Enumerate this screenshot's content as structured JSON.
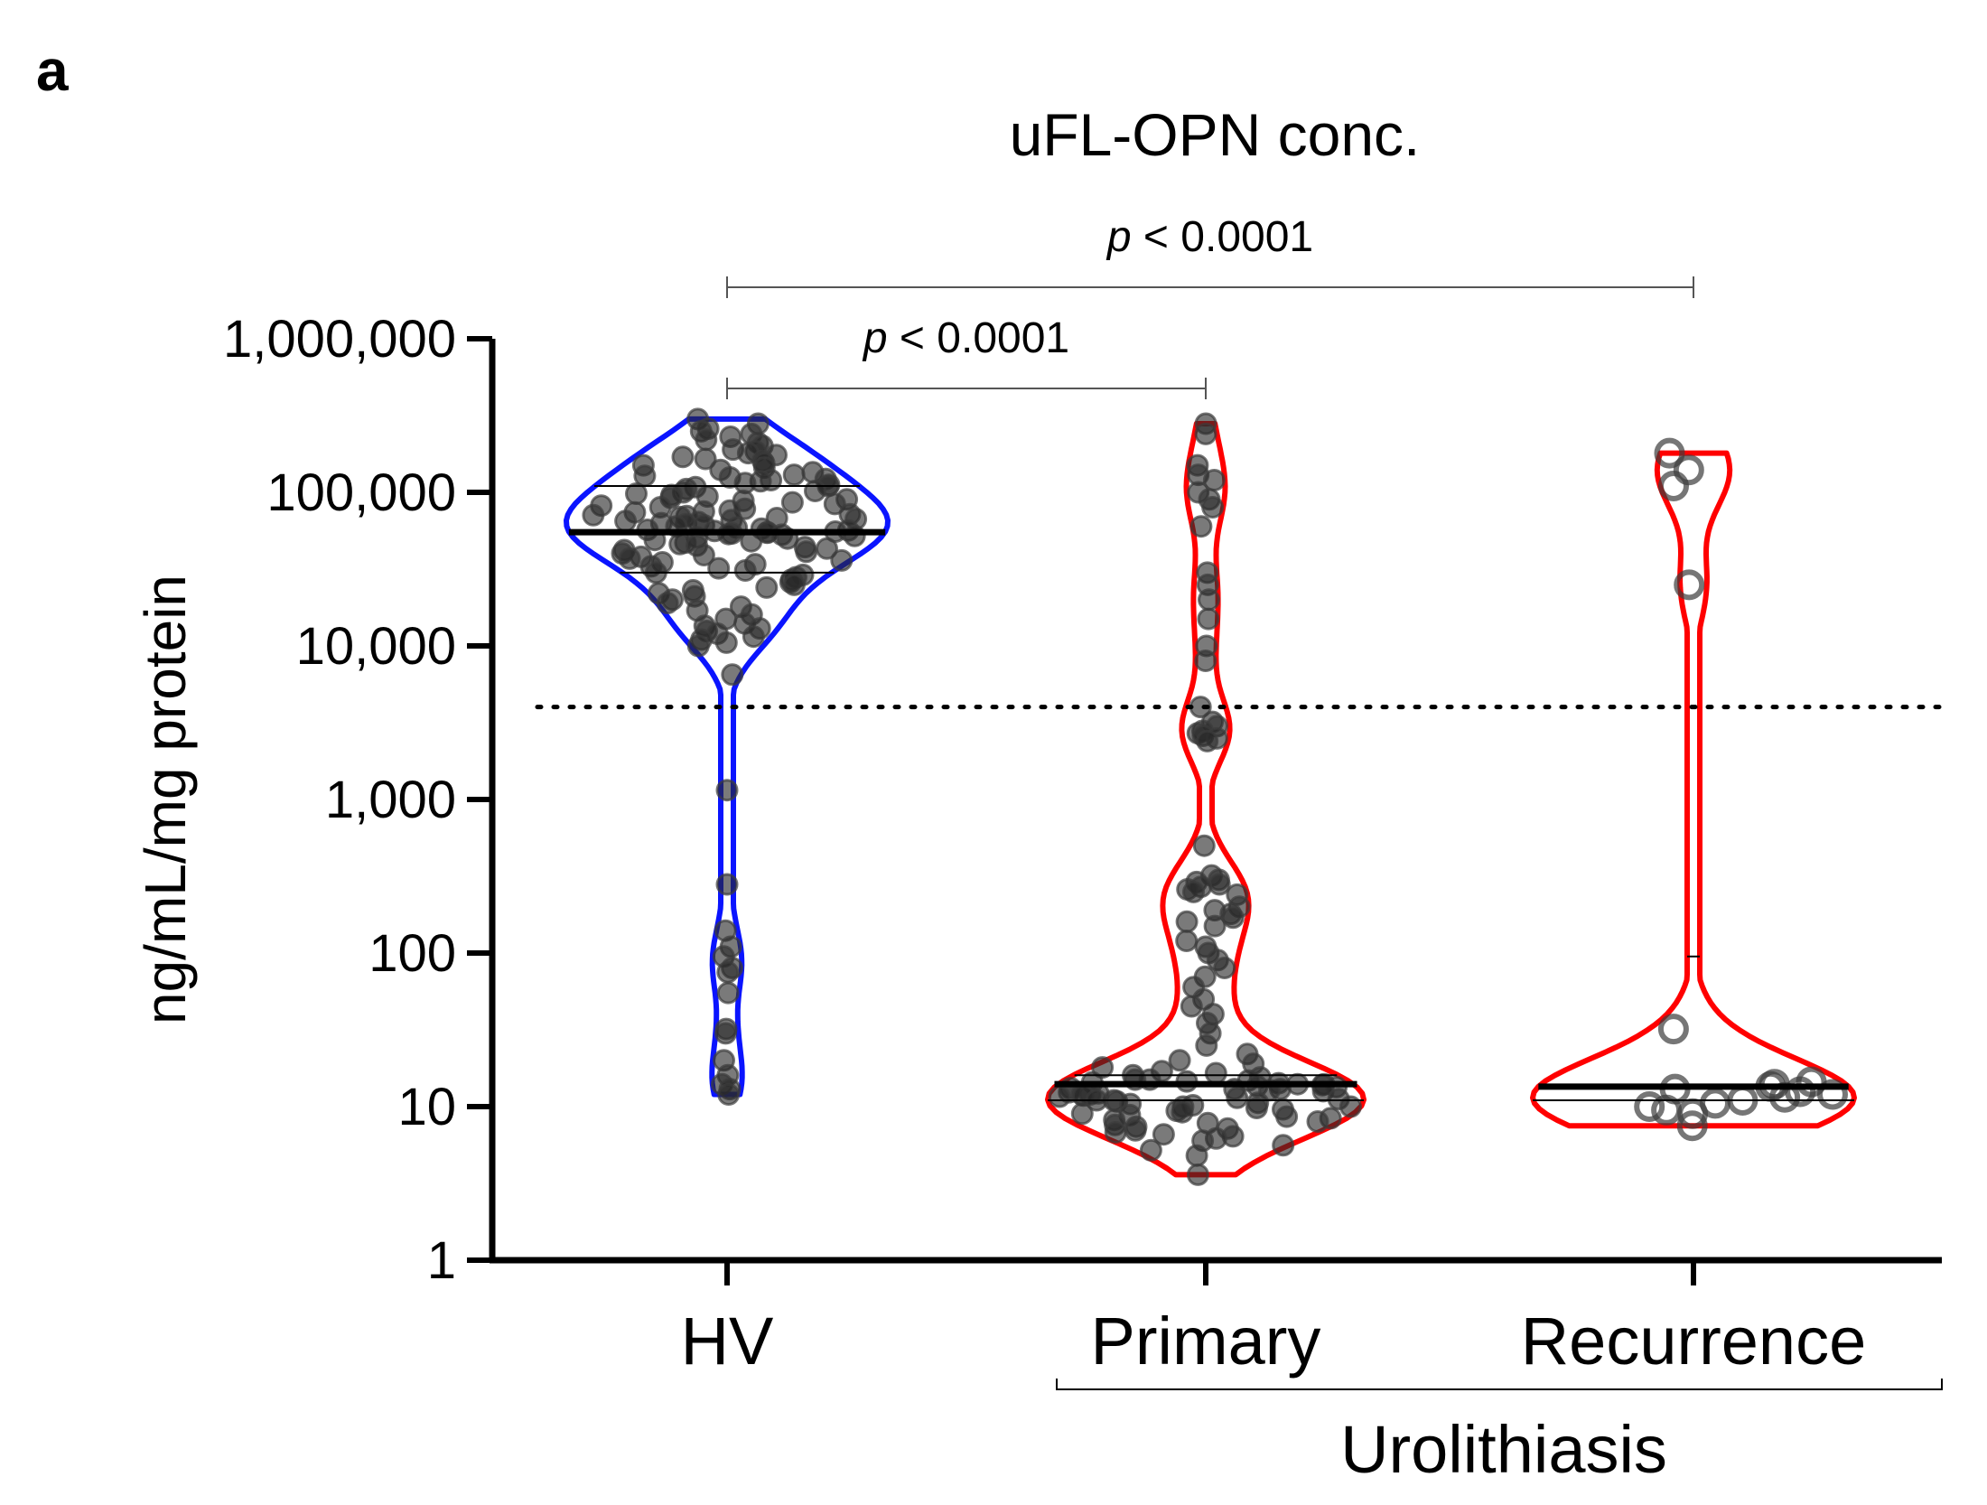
{
  "panel_letter": "a",
  "chart_data": {
    "type": "violin",
    "title": "uFL-OPN conc.",
    "ylabel": "ng/mL/mg protein",
    "xlabel": "",
    "yscale": "log",
    "ylim": [
      1,
      1000000
    ],
    "yticks": [
      1,
      10,
      100,
      1000,
      10000,
      100000,
      1000000
    ],
    "ytick_labels": [
      "1",
      "10",
      "100",
      "1,000",
      "10,000",
      "100,000",
      "1,000,000"
    ],
    "categories": [
      "HV",
      "Primary",
      "Recurrence"
    ],
    "group_bracket": {
      "label": "Urolithiasis",
      "spans": [
        "Primary",
        "Recurrence"
      ]
    },
    "threshold_line": {
      "value": 4000,
      "style": "dotted"
    },
    "comparisons": [
      {
        "from": "HV",
        "to": "Primary",
        "p_prefix": "p",
        "p_text": " < 0.0001"
      },
      {
        "from": "HV",
        "to": "Recurrence",
        "p_prefix": "p",
        "p_text": " < 0.0001"
      }
    ],
    "series": [
      {
        "category": "HV",
        "color": "#0a14ff",
        "median": 55000,
        "q1": 30000,
        "q3": 110000,
        "min": 12,
        "max": 300000,
        "points": [
          300000,
          280000,
          260000,
          250000,
          240000,
          230000,
          220000,
          210000,
          200000,
          190000,
          185000,
          180000,
          175000,
          170000,
          165000,
          160000,
          155000,
          150000,
          145000,
          140000,
          135000,
          130000,
          128000,
          125000,
          122000,
          120000,
          118000,
          115000,
          112000,
          110000,
          108000,
          105000,
          102000,
          100000,
          98000,
          96000,
          94000,
          92000,
          90000,
          88000,
          86000,
          84000,
          82000,
          80000,
          78000,
          76000,
          75000,
          74000,
          72000,
          71000,
          70000,
          69000,
          68000,
          67000,
          66000,
          65000,
          64000,
          63000,
          62000,
          61000,
          60000,
          59000,
          58000,
          57000,
          56500,
          56000,
          55500,
          55000,
          54500,
          54000,
          53500,
          53000,
          52000,
          51000,
          50000,
          49000,
          48000,
          47000,
          46000,
          45000,
          44000,
          43000,
          42000,
          41000,
          40000,
          39000,
          38000,
          37000,
          36000,
          35000,
          34000,
          33000,
          32000,
          31000,
          30000,
          29000,
          28000,
          27000,
          26000,
          25000,
          24000,
          23000,
          22000,
          21000,
          20000,
          19000,
          18000,
          17000,
          16000,
          15000,
          14000,
          13500,
          13000,
          12500,
          12000,
          11500,
          11000,
          10500,
          10000,
          6500,
          1150,
          280,
          140,
          110,
          95,
          80,
          75,
          55,
          32,
          30,
          20,
          16,
          14,
          13,
          12
        ],
        "point_style": "filled"
      },
      {
        "category": "Primary",
        "color": "#ff0000",
        "median": 14,
        "q1": 11,
        "q3": 16,
        "min": 3.6,
        "max": 280000,
        "points": [
          280000,
          240000,
          150000,
          130000,
          120000,
          100000,
          90000,
          80000,
          60000,
          30000,
          25000,
          20000,
          15000,
          10000,
          8000,
          4000,
          3200,
          3000,
          2800,
          2700,
          2600,
          2500,
          2400,
          500,
          320,
          300,
          290,
          280,
          270,
          260,
          250,
          240,
          200,
          190,
          180,
          170,
          160,
          150,
          120,
          110,
          100,
          90,
          80,
          70,
          60,
          50,
          45,
          40,
          35,
          30,
          25,
          22,
          20,
          19,
          18,
          17,
          16.5,
          16,
          15.5,
          15,
          15,
          14.8,
          14.6,
          14.4,
          14.2,
          14,
          14,
          13.8,
          13.6,
          13.4,
          13.2,
          13,
          13,
          12.8,
          12.6,
          12.4,
          12.2,
          12,
          12,
          11.8,
          11.6,
          11.4,
          11.2,
          11,
          11,
          10.8,
          10.6,
          10.4,
          10.2,
          10,
          10,
          9.8,
          9.6,
          9.4,
          9.2,
          9,
          8.8,
          8.6,
          8.4,
          8.2,
          8,
          7.8,
          7.6,
          7.4,
          7.2,
          7,
          6.8,
          6.6,
          6.4,
          6.2,
          6,
          5.6,
          5.2,
          4.8,
          3.6
        ],
        "point_style": "filled"
      },
      {
        "category": "Recurrence",
        "color": "#ff0000",
        "median": 13.5,
        "q1": 11,
        "q3": 95,
        "min": 7.5,
        "max": 180000,
        "points": [
          180000,
          25000,
          140000,
          110000,
          32,
          14.5,
          14,
          13.5,
          13,
          12.5,
          12,
          11.5,
          11,
          10.5,
          10,
          9.5,
          9,
          7.5
        ],
        "point_style": "open"
      }
    ]
  }
}
